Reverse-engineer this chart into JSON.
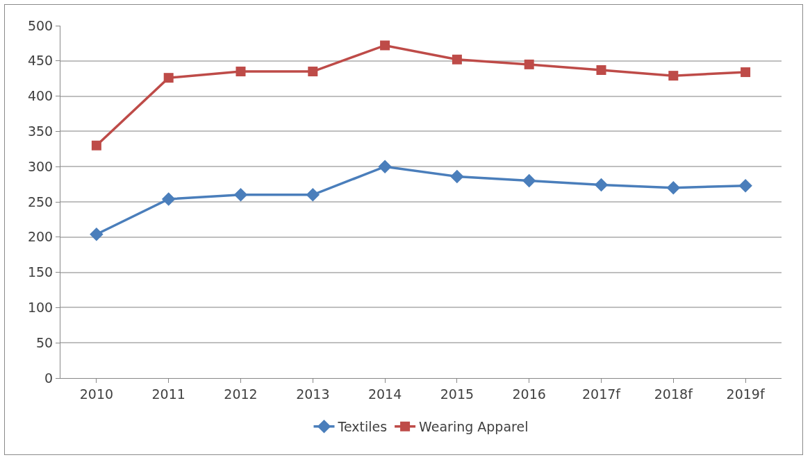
{
  "chart_data": {
    "type": "line",
    "categories": [
      "2010",
      "2011",
      "2012",
      "2013",
      "2014",
      "2015",
      "2016",
      "2017f",
      "2018f",
      "2019f"
    ],
    "series": [
      {
        "name": "Textiles",
        "color": "#4a7ebb",
        "marker": "diamond",
        "values": [
          204,
          254,
          260,
          260,
          300,
          286,
          280,
          274,
          270,
          273
        ]
      },
      {
        "name": "Wearing Apparel",
        "color": "#be4b48",
        "marker": "square",
        "values": [
          330,
          426,
          435,
          435,
          472,
          452,
          445,
          437,
          429,
          434
        ]
      }
    ],
    "ylim": [
      0,
      500
    ],
    "yticks": [
      0,
      50,
      100,
      150,
      200,
      250,
      300,
      350,
      400,
      450,
      500
    ],
    "grid": "y",
    "legend": "bottom",
    "line_style": "solid"
  }
}
